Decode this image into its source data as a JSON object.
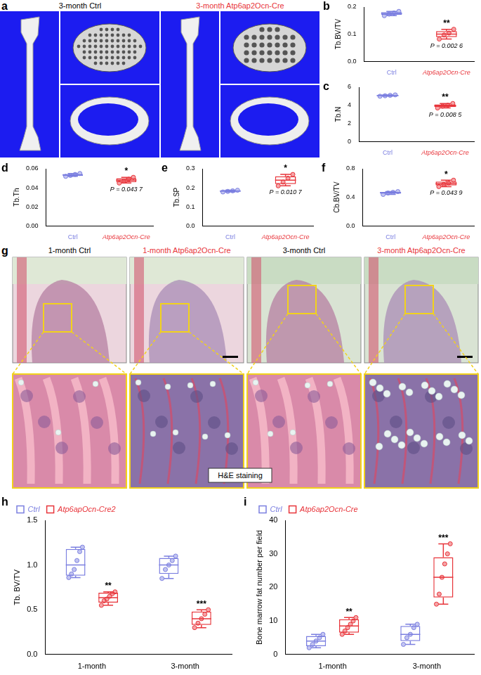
{
  "chart_data": [
    {
      "panel": "b",
      "type": "box",
      "y_label": "Tb.BV/TV",
      "categories": [
        "Ctrl",
        "Atp6ap2Ocn-Cre"
      ],
      "colors": [
        "#7b7fe0",
        "#e8353b"
      ],
      "points": [
        [
          0.168,
          0.174,
          0.178,
          0.184
        ],
        [
          0.082,
          0.097,
          0.104,
          0.118
        ]
      ],
      "box": [
        [
          0.168,
          0.171,
          0.176,
          0.181,
          0.184
        ],
        [
          0.082,
          0.089,
          0.1,
          0.111,
          0.118
        ]
      ],
      "stars": "**",
      "p_text": "P = 0.002 6",
      "ylim": [
        0,
        0.2
      ],
      "yticks": [
        {
          "value": 0,
          "label": "0.0"
        },
        {
          "value": 0.1,
          "label": "0.1"
        },
        {
          "value": 0.2,
          "label": "0.2"
        }
      ],
      "grid": false
    },
    {
      "panel": "c",
      "type": "box",
      "y_label": "Tb.N",
      "categories": [
        "Ctrl",
        "Atp6ap2Ocn-Cre"
      ],
      "colors": [
        "#7b7fe0",
        "#e8353b"
      ],
      "points": [
        [
          5.0,
          5.05,
          5.1,
          5.15
        ],
        [
          3.7,
          3.9,
          4.0,
          4.2
        ]
      ],
      "box": [
        [
          5.0,
          5.02,
          5.07,
          5.12,
          5.15
        ],
        [
          3.7,
          3.8,
          3.95,
          4.1,
          4.2
        ]
      ],
      "stars": "**",
      "p_text": "P = 0.008 5",
      "ylim": [
        0,
        6
      ],
      "yticks": [
        0,
        2,
        4,
        6
      ],
      "grid": false
    },
    {
      "panel": "d",
      "type": "box",
      "y_label": "Tb.Th",
      "categories": [
        "Ctrl",
        "Atp6ap2Ocn-Cre"
      ],
      "colors": [
        "#7b7fe0",
        "#e8353b"
      ],
      "points": [
        [
          0.052,
          0.053,
          0.054,
          0.055
        ],
        [
          0.045,
          0.047,
          0.049,
          0.051
        ]
      ],
      "box": [
        [
          0.052,
          0.0525,
          0.0535,
          0.0545,
          0.055
        ],
        [
          0.045,
          0.046,
          0.048,
          0.05,
          0.051
        ]
      ],
      "stars": "*",
      "p_text": "P = 0.043 7",
      "ylim": [
        0,
        0.06
      ],
      "yticks": [
        {
          "value": 0,
          "label": "0.00"
        },
        {
          "value": 0.02,
          "label": "0.02"
        },
        {
          "value": 0.04,
          "label": "0.04"
        },
        {
          "value": 0.06,
          "label": "0.06"
        }
      ],
      "grid": false
    },
    {
      "panel": "e",
      "type": "box",
      "y_label": "Tb.SP",
      "categories": [
        "Ctrl",
        "Atp6ap2Ocn-Cre"
      ],
      "colors": [
        "#7b7fe0",
        "#e8353b"
      ],
      "points": [
        [
          0.178,
          0.181,
          0.184,
          0.187
        ],
        [
          0.21,
          0.23,
          0.25,
          0.27
        ]
      ],
      "box": [
        [
          0.178,
          0.18,
          0.183,
          0.186,
          0.187
        ],
        [
          0.21,
          0.22,
          0.24,
          0.26,
          0.27
        ]
      ],
      "stars": "*",
      "p_text": "P = 0.010 7",
      "ylim": [
        0,
        0.3
      ],
      "yticks": [
        {
          "value": 0,
          "label": "0.0"
        },
        {
          "value": 0.1,
          "label": "0.1"
        },
        {
          "value": 0.2,
          "label": "0.2"
        },
        {
          "value": 0.3,
          "label": "0.3"
        }
      ],
      "grid": false
    },
    {
      "panel": "f",
      "type": "box",
      "y_label": "Cb.BV/TV",
      "categories": [
        "Ctrl",
        "Atp6ap2Ocn-Cre"
      ],
      "colors": [
        "#7b7fe0",
        "#e8353b"
      ],
      "points": [
        [
          0.44,
          0.46,
          0.47,
          0.48
        ],
        [
          0.55,
          0.58,
          0.6,
          0.64
        ]
      ],
      "box": [
        [
          0.44,
          0.45,
          0.465,
          0.475,
          0.48
        ],
        [
          0.55,
          0.565,
          0.59,
          0.62,
          0.64
        ]
      ],
      "stars": "*",
      "p_text": "P = 0.043 9",
      "ylim": [
        0,
        0.8
      ],
      "yticks": [
        {
          "value": 0,
          "label": "0.0"
        },
        {
          "value": 0.4,
          "label": "0.4"
        },
        {
          "value": 0.8,
          "label": "0.8"
        }
      ],
      "grid": false
    },
    {
      "panel": "h",
      "type": "box",
      "y_label": "Tb. BV/TV",
      "categories": [
        "1-month",
        "3-month"
      ],
      "legend": "top-left",
      "series": [
        {
          "name": "Ctrl",
          "color": "#7b7fe0",
          "points": [
            [
              0.86,
              0.9,
              0.95,
              1.05,
              1.15,
              1.2
            ],
            [
              0.85,
              0.95,
              1.0,
              1.05,
              1.1
            ]
          ],
          "box": [
            [
              0.86,
              0.88,
              1.0,
              1.18,
              1.2
            ],
            [
              0.85,
              0.9,
              1.0,
              1.08,
              1.1
            ]
          ]
        },
        {
          "name": "Atp6apOcn-Cre2",
          "color": "#e8353b",
          "points": [
            [
              0.55,
              0.6,
              0.62,
              0.65,
              0.68,
              0.7
            ],
            [
              0.3,
              0.35,
              0.4,
              0.45,
              0.5
            ]
          ],
          "box": [
            [
              0.55,
              0.58,
              0.635,
              0.69,
              0.7
            ],
            [
              0.3,
              0.33,
              0.4,
              0.48,
              0.5
            ]
          ],
          "stars": [
            "**",
            "***"
          ]
        }
      ],
      "ylim": [
        0,
        1.5
      ],
      "yticks": [
        {
          "value": 0,
          "label": "0.0"
        },
        {
          "value": 0.5,
          "label": "0.5"
        },
        {
          "value": 1,
          "label": "1.0"
        },
        {
          "value": 1.5,
          "label": "1.5"
        }
      ],
      "grid": false
    },
    {
      "panel": "i",
      "type": "box",
      "y_label": "Bone marrow fat number per field",
      "categories": [
        "1-month",
        "3-month"
      ],
      "legend": "top-left",
      "series": [
        {
          "name": "Ctrl",
          "color": "#7b7fe0",
          "points": [
            [
              2,
              3,
              4,
              5,
              6
            ],
            [
              3,
              5,
              6,
              8,
              9
            ]
          ],
          "box": [
            [
              2,
              2.5,
              4,
              5.5,
              6
            ],
            [
              3,
              4,
              6,
              8.5,
              9
            ]
          ]
        },
        {
          "name": "Atp6ap2Ocn-Cre",
          "color": "#e8353b",
          "points": [
            [
              6,
              7,
              8,
              9,
              10,
              11
            ],
            [
              15,
              18,
              23,
              27,
              30,
              33
            ]
          ],
          "box": [
            [
              6,
              6.5,
              8.5,
              10.5,
              11
            ],
            [
              15,
              17,
              23,
              29,
              33
            ]
          ],
          "stars": [
            "**",
            "***"
          ]
        }
      ],
      "ylim": [
        0,
        40
      ],
      "yticks": [
        0,
        10,
        20,
        30,
        40
      ],
      "grid": false
    }
  ],
  "images": [
    {
      "panel": "a",
      "labels": [
        "3-month Ctrl",
        "3-month Atp6ap2Ocn-Cre"
      ]
    },
    {
      "panel": "g",
      "labels": [
        "1-month Ctrl",
        "1-month Atp6ap2Ocn-Cre",
        "3-month Ctrl",
        "3-month Atp6ap2Ocn-Cre"
      ],
      "caption": "H&E staining"
    }
  ]
}
